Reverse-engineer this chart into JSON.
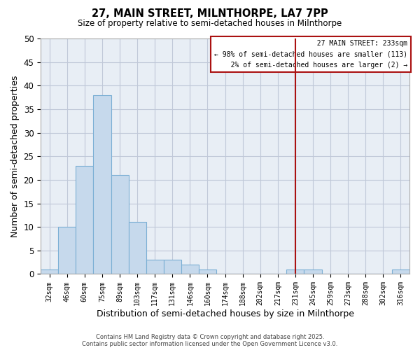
{
  "title": "27, MAIN STREET, MILNTHORPE, LA7 7PP",
  "subtitle": "Size of property relative to semi-detached houses in Milnthorpe",
  "xlabel": "Distribution of semi-detached houses by size in Milnthorpe",
  "ylabel": "Number of semi-detached properties",
  "bar_labels": [
    "32sqm",
    "46sqm",
    "60sqm",
    "75sqm",
    "89sqm",
    "103sqm",
    "117sqm",
    "131sqm",
    "146sqm",
    "160sqm",
    "174sqm",
    "188sqm",
    "202sqm",
    "217sqm",
    "231sqm",
    "245sqm",
    "259sqm",
    "273sqm",
    "288sqm",
    "302sqm",
    "316sqm"
  ],
  "bar_heights": [
    1,
    10,
    23,
    38,
    21,
    11,
    3,
    3,
    2,
    1,
    0,
    0,
    0,
    0,
    1,
    1,
    0,
    0,
    0,
    0,
    1
  ],
  "bar_color": "#c6d9ec",
  "bar_edgecolor": "#7bafd4",
  "vline_x": 14,
  "vline_color": "#aa1111",
  "ylim": [
    0,
    50
  ],
  "yticks": [
    0,
    5,
    10,
    15,
    20,
    25,
    30,
    35,
    40,
    45,
    50
  ],
  "annotation_title": "27 MAIN STREET: 233sqm",
  "annotation_line1": "← 98% of semi-detached houses are smaller (113)",
  "annotation_line2": "2% of semi-detached houses are larger (2) →",
  "annotation_box_edgecolor": "#aa1111",
  "footer_line1": "Contains HM Land Registry data © Crown copyright and database right 2025.",
  "footer_line2": "Contains public sector information licensed under the Open Government Licence v3.0.",
  "background_color": "#ffffff",
  "axes_facecolor": "#e8eef5",
  "grid_color": "#c0c8d8"
}
